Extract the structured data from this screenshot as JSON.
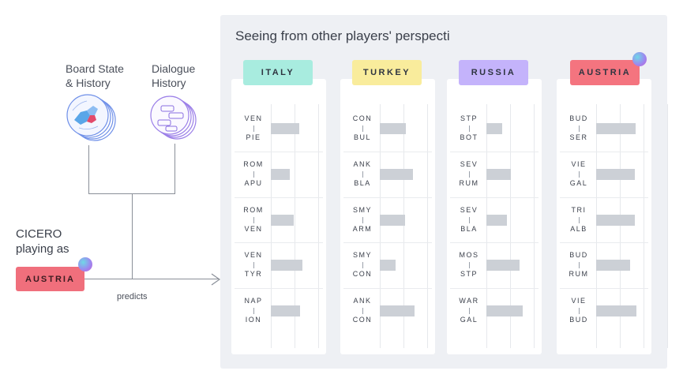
{
  "inputs": {
    "board_label": [
      "Board State",
      "& History"
    ],
    "dialogue_label": [
      "Dialogue",
      "History"
    ]
  },
  "agent": {
    "name": "CICERO",
    "subtitle": "playing as",
    "country": "AUSTRIA",
    "arrow_label": "predicts"
  },
  "panel": {
    "title": "Seeing from other players' perspecti"
  },
  "chart_data": {
    "type": "bar",
    "scale_max": 1.0,
    "players": [
      {
        "name": "ITALY",
        "color": "#a8ecdf",
        "moves": [
          {
            "from": "VEN",
            "to": "PIE",
            "value": 0.36
          },
          {
            "from": "ROM",
            "to": "APU",
            "value": 0.24
          },
          {
            "from": "ROM",
            "to": "VEN",
            "value": 0.29
          },
          {
            "from": "VEN",
            "to": "TYR",
            "value": 0.4
          },
          {
            "from": "NAP",
            "to": "ION",
            "value": 0.37
          }
        ]
      },
      {
        "name": "TURKEY",
        "color": "#f9ec9c",
        "moves": [
          {
            "from": "CON",
            "to": "BUL",
            "value": 0.33
          },
          {
            "from": "ANK",
            "to": "BLA",
            "value": 0.42
          },
          {
            "from": "SMY",
            "to": "ARM",
            "value": 0.32
          },
          {
            "from": "SMY",
            "to": "CON",
            "value": 0.2
          },
          {
            "from": "ANK",
            "to": "CON",
            "value": 0.44
          }
        ]
      },
      {
        "name": "RUSSIA",
        "color": "#c4b3fb",
        "moves": [
          {
            "from": "STP",
            "to": "BOT",
            "value": 0.2
          },
          {
            "from": "SEV",
            "to": "RUM",
            "value": 0.31
          },
          {
            "from": "SEV",
            "to": "BLA",
            "value": 0.26
          },
          {
            "from": "MOS",
            "to": "STP",
            "value": 0.42
          },
          {
            "from": "WAR",
            "to": "GAL",
            "value": 0.46
          }
        ]
      },
      {
        "name": "AUSTRIA",
        "color": "#f4747f",
        "moves": [
          {
            "from": "BUD",
            "to": "SER",
            "value": 0.5
          },
          {
            "from": "VIE",
            "to": "GAL",
            "value": 0.49
          },
          {
            "from": "TRI",
            "to": "ALB",
            "value": 0.49
          },
          {
            "from": "BUD",
            "to": "RUM",
            "value": 0.43
          },
          {
            "from": "VIE",
            "to": "BUD",
            "value": 0.51
          }
        ]
      }
    ]
  }
}
